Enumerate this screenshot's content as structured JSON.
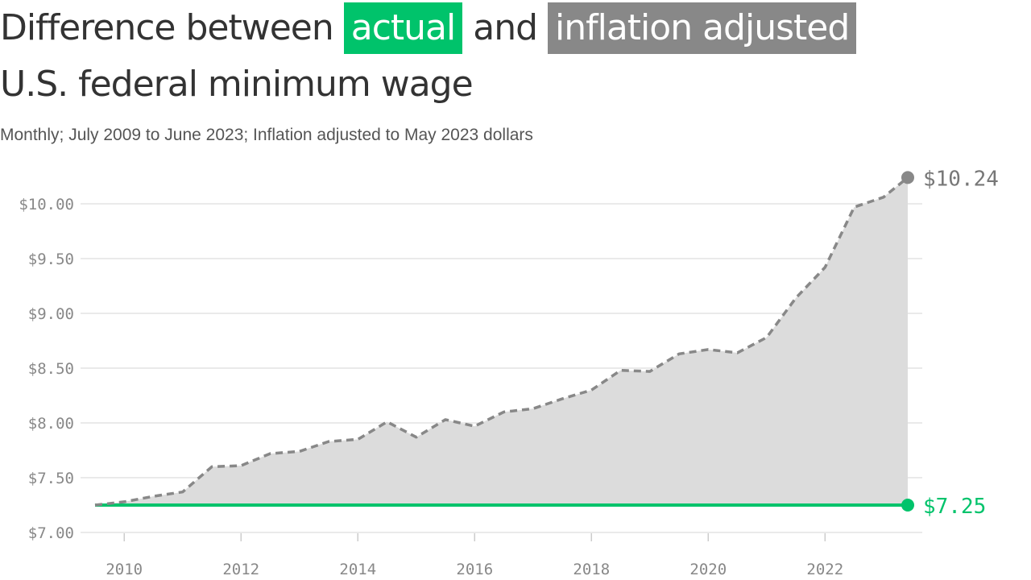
{
  "title": {
    "part1": "Difference between",
    "actual": "actual",
    "part2": "and",
    "inflation": "inflation adjusted",
    "line2": "U.S. federal minimum wage"
  },
  "subtitle": "Monthly; July 2009 to June 2023; Inflation adjusted to May 2023 dollars",
  "colors": {
    "actual": "#00c36b",
    "inflation": "#888888",
    "area": "#dcdcdc",
    "grid": "#e3e3e3"
  },
  "chart_data": {
    "type": "area",
    "x_ticks": [
      2010,
      2012,
      2014,
      2016,
      2018,
      2020,
      2022
    ],
    "y_ticks": [
      "$10.00",
      "$9.50",
      "$9.00",
      "$8.50",
      "$8.00",
      "$7.50",
      "$7.00"
    ],
    "y_tick_values": [
      10.0,
      9.5,
      9.0,
      8.5,
      8.0,
      7.5,
      7.0
    ],
    "ylim": [
      7.0,
      10.2
    ],
    "xlim": [
      "2009-07",
      "2023-06"
    ],
    "grid": true,
    "series": [
      {
        "name": "inflation adjusted",
        "style": "dashed",
        "end_label": "$10.24",
        "points": [
          [
            "2009-07",
            7.25
          ],
          [
            "2010-01",
            7.28
          ],
          [
            "2010-07",
            7.33
          ],
          [
            "2011-01",
            7.37
          ],
          [
            "2011-07",
            7.6
          ],
          [
            "2012-01",
            7.61
          ],
          [
            "2012-07",
            7.72
          ],
          [
            "2013-01",
            7.74
          ],
          [
            "2013-07",
            7.83
          ],
          [
            "2014-01",
            7.85
          ],
          [
            "2014-07",
            8.01
          ],
          [
            "2015-01",
            7.87
          ],
          [
            "2015-07",
            8.03
          ],
          [
            "2016-01",
            7.97
          ],
          [
            "2016-07",
            8.1
          ],
          [
            "2017-01",
            8.13
          ],
          [
            "2017-07",
            8.22
          ],
          [
            "2018-01",
            8.3
          ],
          [
            "2018-07",
            8.48
          ],
          [
            "2019-01",
            8.47
          ],
          [
            "2019-07",
            8.63
          ],
          [
            "2020-01",
            8.67
          ],
          [
            "2020-07",
            8.64
          ],
          [
            "2021-01",
            8.78
          ],
          [
            "2021-07",
            9.14
          ],
          [
            "2022-01",
            9.42
          ],
          [
            "2022-07",
            9.97
          ],
          [
            "2023-01",
            10.06
          ],
          [
            "2023-06",
            10.24
          ]
        ]
      },
      {
        "name": "actual",
        "style": "solid",
        "end_label": "$7.25",
        "points": [
          [
            "2009-07",
            7.25
          ],
          [
            "2023-06",
            7.25
          ]
        ]
      }
    ]
  }
}
